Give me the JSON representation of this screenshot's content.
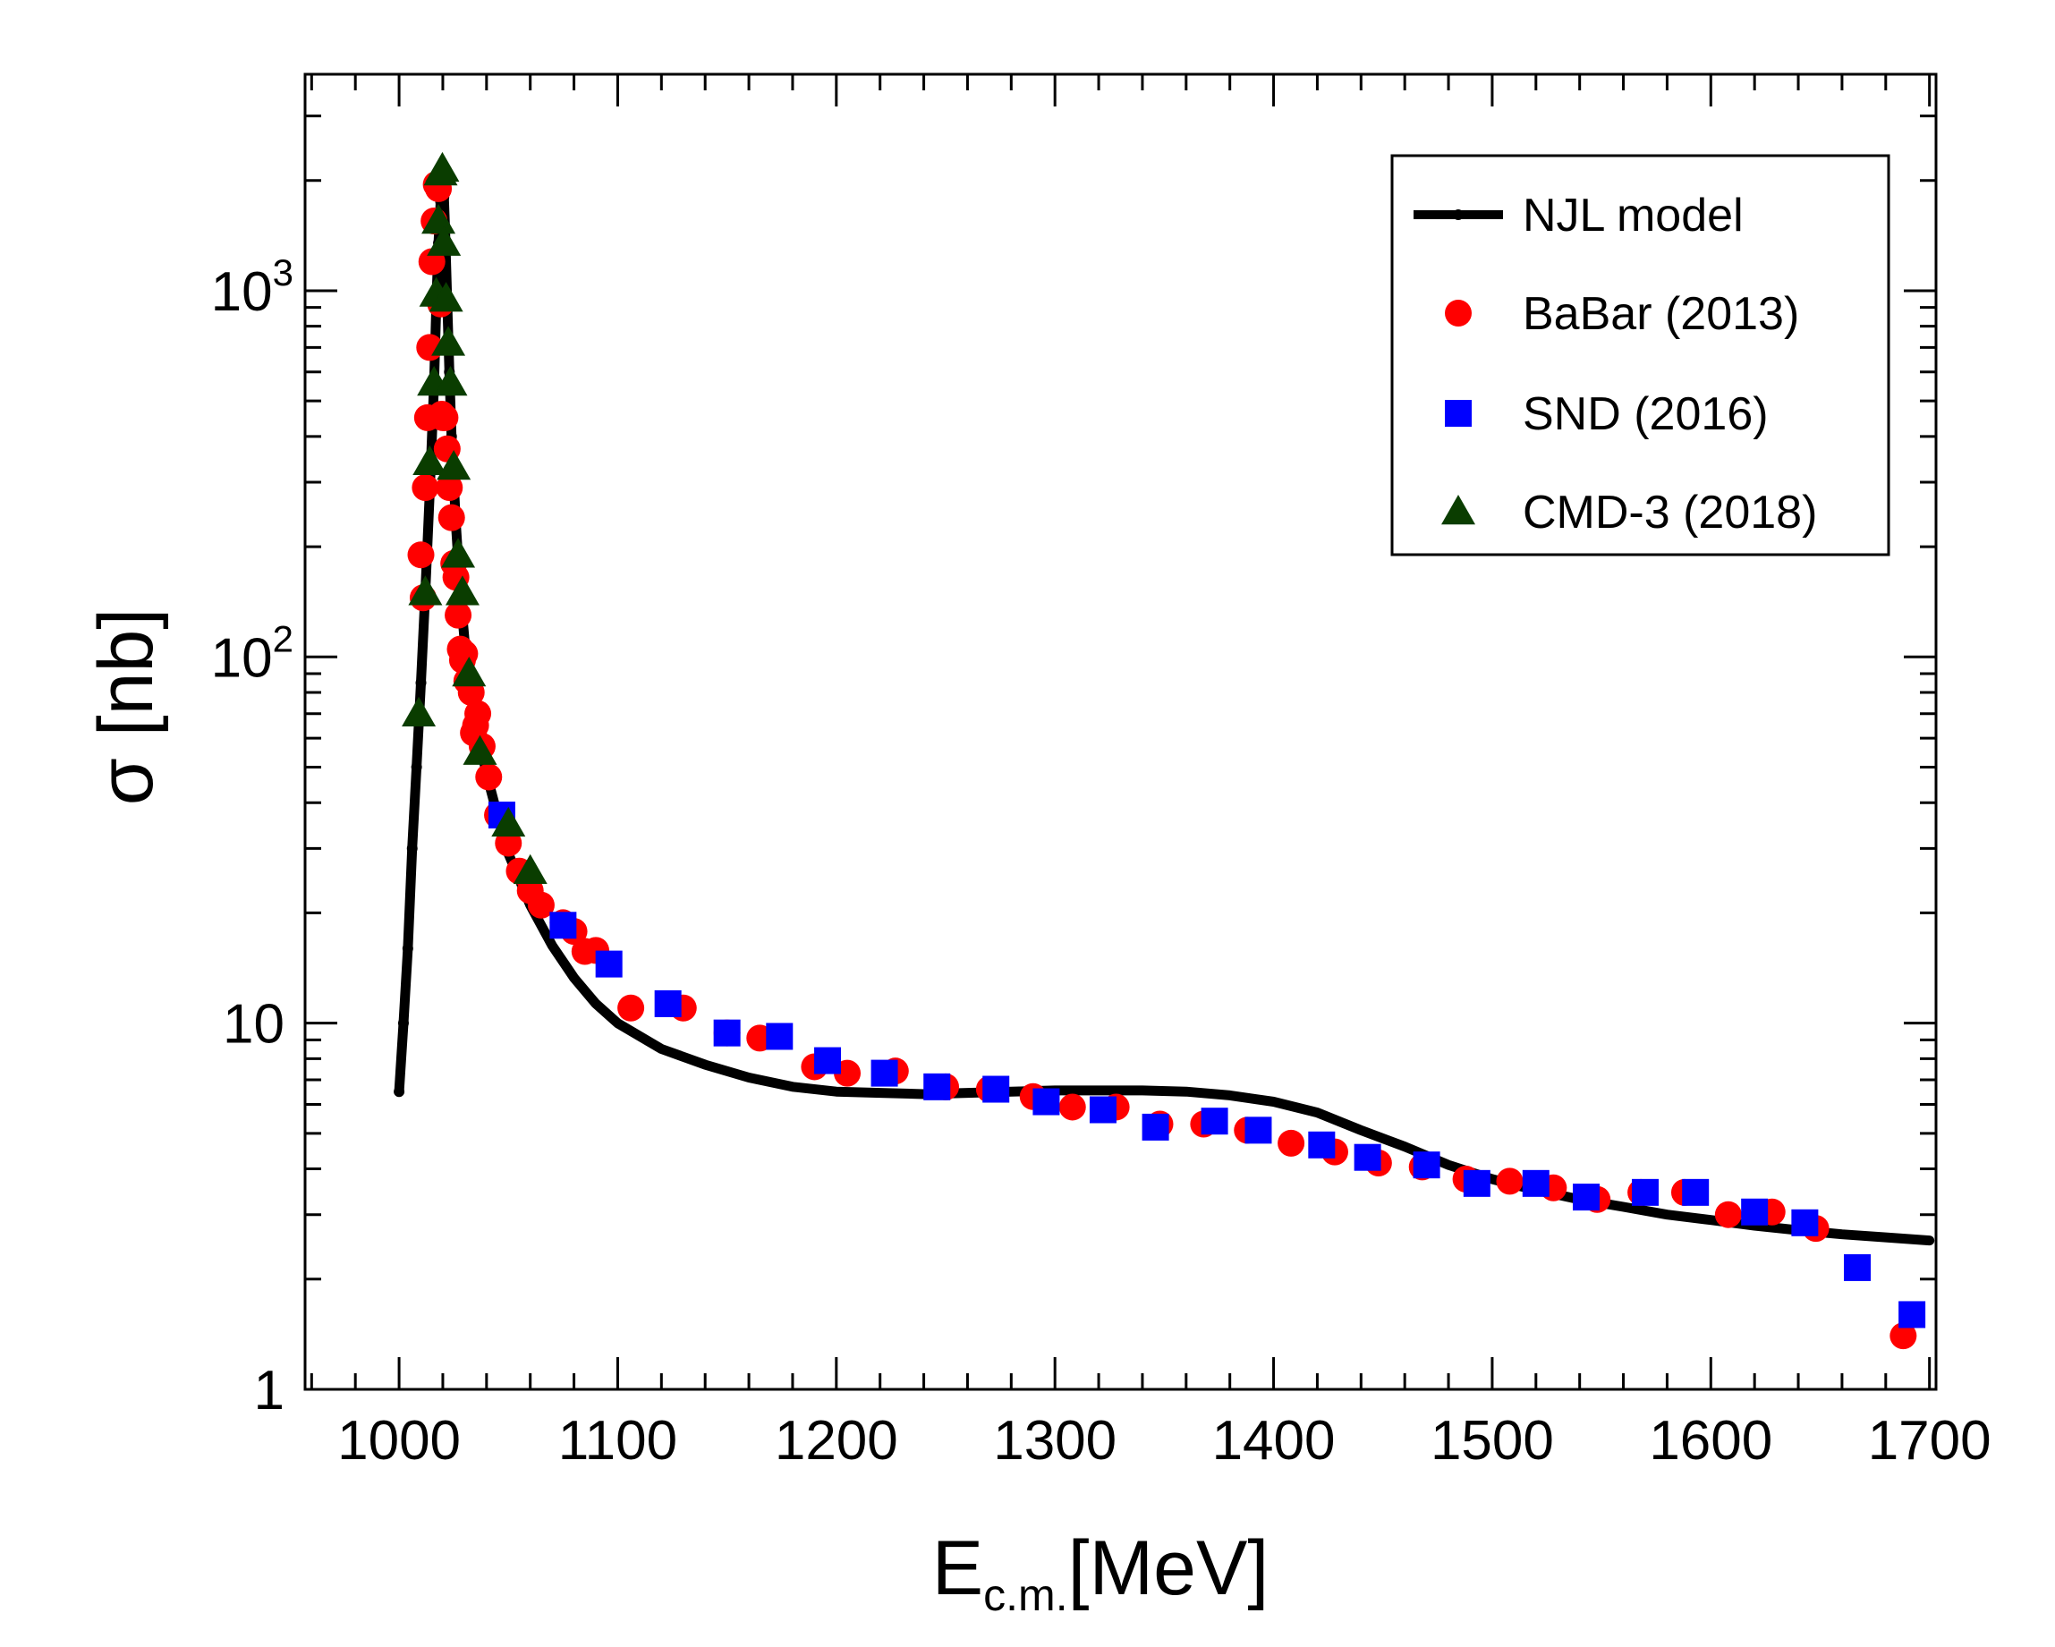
{
  "chart_data": {
    "type": "scatter",
    "title": "",
    "xlabel": {
      "main": "E",
      "sub": "c.m.",
      "unit": "[MeV]"
    },
    "ylabel": "σ [nb]",
    "xlim": [
      957,
      1703
    ],
    "ylim": [
      1,
      3900
    ],
    "yscale": "log",
    "x_ticks": [
      1000,
      1100,
      1200,
      1300,
      1400,
      1500,
      1600,
      1700
    ],
    "x_tick_labels": [
      "1000",
      "1100",
      "1200",
      "1300",
      "1400",
      "1500",
      "1600",
      "1700"
    ],
    "y_ticks": [
      1,
      10,
      100,
      1000
    ],
    "y_tick_labels": [
      {
        "base": "1",
        "exp": ""
      },
      {
        "base": "10",
        "exp": ""
      },
      {
        "base": "10",
        "exp": "2"
      },
      {
        "base": "10",
        "exp": "3"
      }
    ],
    "legend_position": "top-right",
    "series": [
      {
        "name": "NJL model",
        "kind": "line",
        "color": "#000000",
        "x": [
          1000,
          1002,
          1004,
          1006,
          1008,
          1010,
          1012,
          1014,
          1016,
          1017,
          1018,
          1019,
          1019.5,
          1020,
          1020.5,
          1021,
          1022,
          1023,
          1024,
          1026,
          1028,
          1030,
          1033,
          1036,
          1040,
          1045,
          1050,
          1060,
          1070,
          1080,
          1090,
          1100,
          1120,
          1140,
          1160,
          1180,
          1200,
          1220,
          1240,
          1260,
          1280,
          1300,
          1320,
          1340,
          1360,
          1380,
          1400,
          1420,
          1440,
          1460,
          1480,
          1500,
          1520,
          1540,
          1560,
          1580,
          1600,
          1620,
          1640,
          1660,
          1680,
          1700
        ],
        "y": [
          6.5,
          10,
          16,
          30,
          50,
          85,
          150,
          280,
          560,
          900,
          1350,
          1750,
          1900,
          1950,
          1800,
          1500,
          950,
          600,
          400,
          230,
          150,
          110,
          80,
          62,
          48,
          37,
          29,
          21,
          16.3,
          13.3,
          11.3,
          10,
          8.5,
          7.7,
          7.1,
          6.7,
          6.5,
          6.45,
          6.4,
          6.45,
          6.5,
          6.55,
          6.55,
          6.55,
          6.5,
          6.35,
          6.1,
          5.7,
          5.1,
          4.6,
          4.1,
          3.75,
          3.5,
          3.3,
          3.15,
          3.0,
          2.9,
          2.8,
          2.72,
          2.65,
          2.6,
          2.55
        ]
      },
      {
        "name": "BaBar (2013)",
        "kind": "circle",
        "color": "#ff0000",
        "x": [
          1010,
          1011,
          1012,
          1013,
          1014,
          1015,
          1016,
          1017,
          1018,
          1019,
          1019.5,
          1020,
          1021,
          1022,
          1023,
          1024,
          1025,
          1026,
          1027,
          1028,
          1029,
          1030,
          1031,
          1033,
          1034,
          1035,
          1036,
          1038,
          1041,
          1045,
          1050,
          1055,
          1060,
          1065,
          1075,
          1080,
          1085,
          1090,
          1106,
          1130,
          1150,
          1165,
          1190,
          1205,
          1227,
          1250,
          1270,
          1290,
          1308,
          1328,
          1348,
          1368,
          1388,
          1408,
          1428,
          1448,
          1468,
          1488,
          1508,
          1528,
          1548,
          1568,
          1588,
          1608,
          1628,
          1648,
          1688
        ],
        "y": [
          190,
          145,
          290,
          450,
          700,
          1200,
          1550,
          1950,
          1900,
          920,
          460,
          450,
          450,
          370,
          290,
          240,
          180,
          165,
          130,
          105,
          98,
          102,
          86,
          80,
          62,
          65,
          70,
          57,
          47,
          37,
          31,
          26,
          23,
          21,
          18.8,
          17.8,
          15.7,
          15.8,
          11,
          11,
          9.4,
          9.1,
          7.6,
          7.3,
          7.4,
          6.7,
          6.6,
          6.3,
          5.9,
          5.9,
          5.3,
          5.3,
          5.1,
          4.7,
          4.45,
          4.15,
          4.05,
          3.75,
          3.7,
          3.55,
          3.3,
          3.45,
          3.45,
          3.0,
          3.05,
          2.75,
          1.4
        ]
      },
      {
        "name": "SND (2016)",
        "kind": "square",
        "color": "#0000ff",
        "x": [
          1047,
          1075,
          1096,
          1123,
          1150,
          1174,
          1196,
          1222,
          1246,
          1273,
          1296,
          1322,
          1346,
          1373,
          1393,
          1422,
          1443,
          1470,
          1493,
          1520,
          1543,
          1570,
          1593,
          1620,
          1643,
          1667,
          1692
        ],
        "y": [
          37,
          18.5,
          14.5,
          11.3,
          9.4,
          9.2,
          7.9,
          7.3,
          6.7,
          6.6,
          6.1,
          5.8,
          5.2,
          5.4,
          5.1,
          4.65,
          4.3,
          4.1,
          3.65,
          3.65,
          3.35,
          3.45,
          3.45,
          3.05,
          2.85,
          2.15,
          1.6
        ]
      },
      {
        "name": "CMD-3 (2018)",
        "kind": "triangle",
        "color": "#0a3d00",
        "x": [
          1009,
          1012,
          1014,
          1016,
          1017,
          1018,
          1019,
          1019.8,
          1020.5,
          1021.5,
          1022.5,
          1023.5,
          1025,
          1027,
          1029,
          1032,
          1037,
          1050,
          1060
        ],
        "y": [
          70,
          150,
          340,
          560,
          980,
          1550,
          2100,
          2150,
          1350,
          950,
          720,
          560,
          330,
          190,
          150,
          90,
          55,
          35,
          26
        ]
      }
    ]
  }
}
